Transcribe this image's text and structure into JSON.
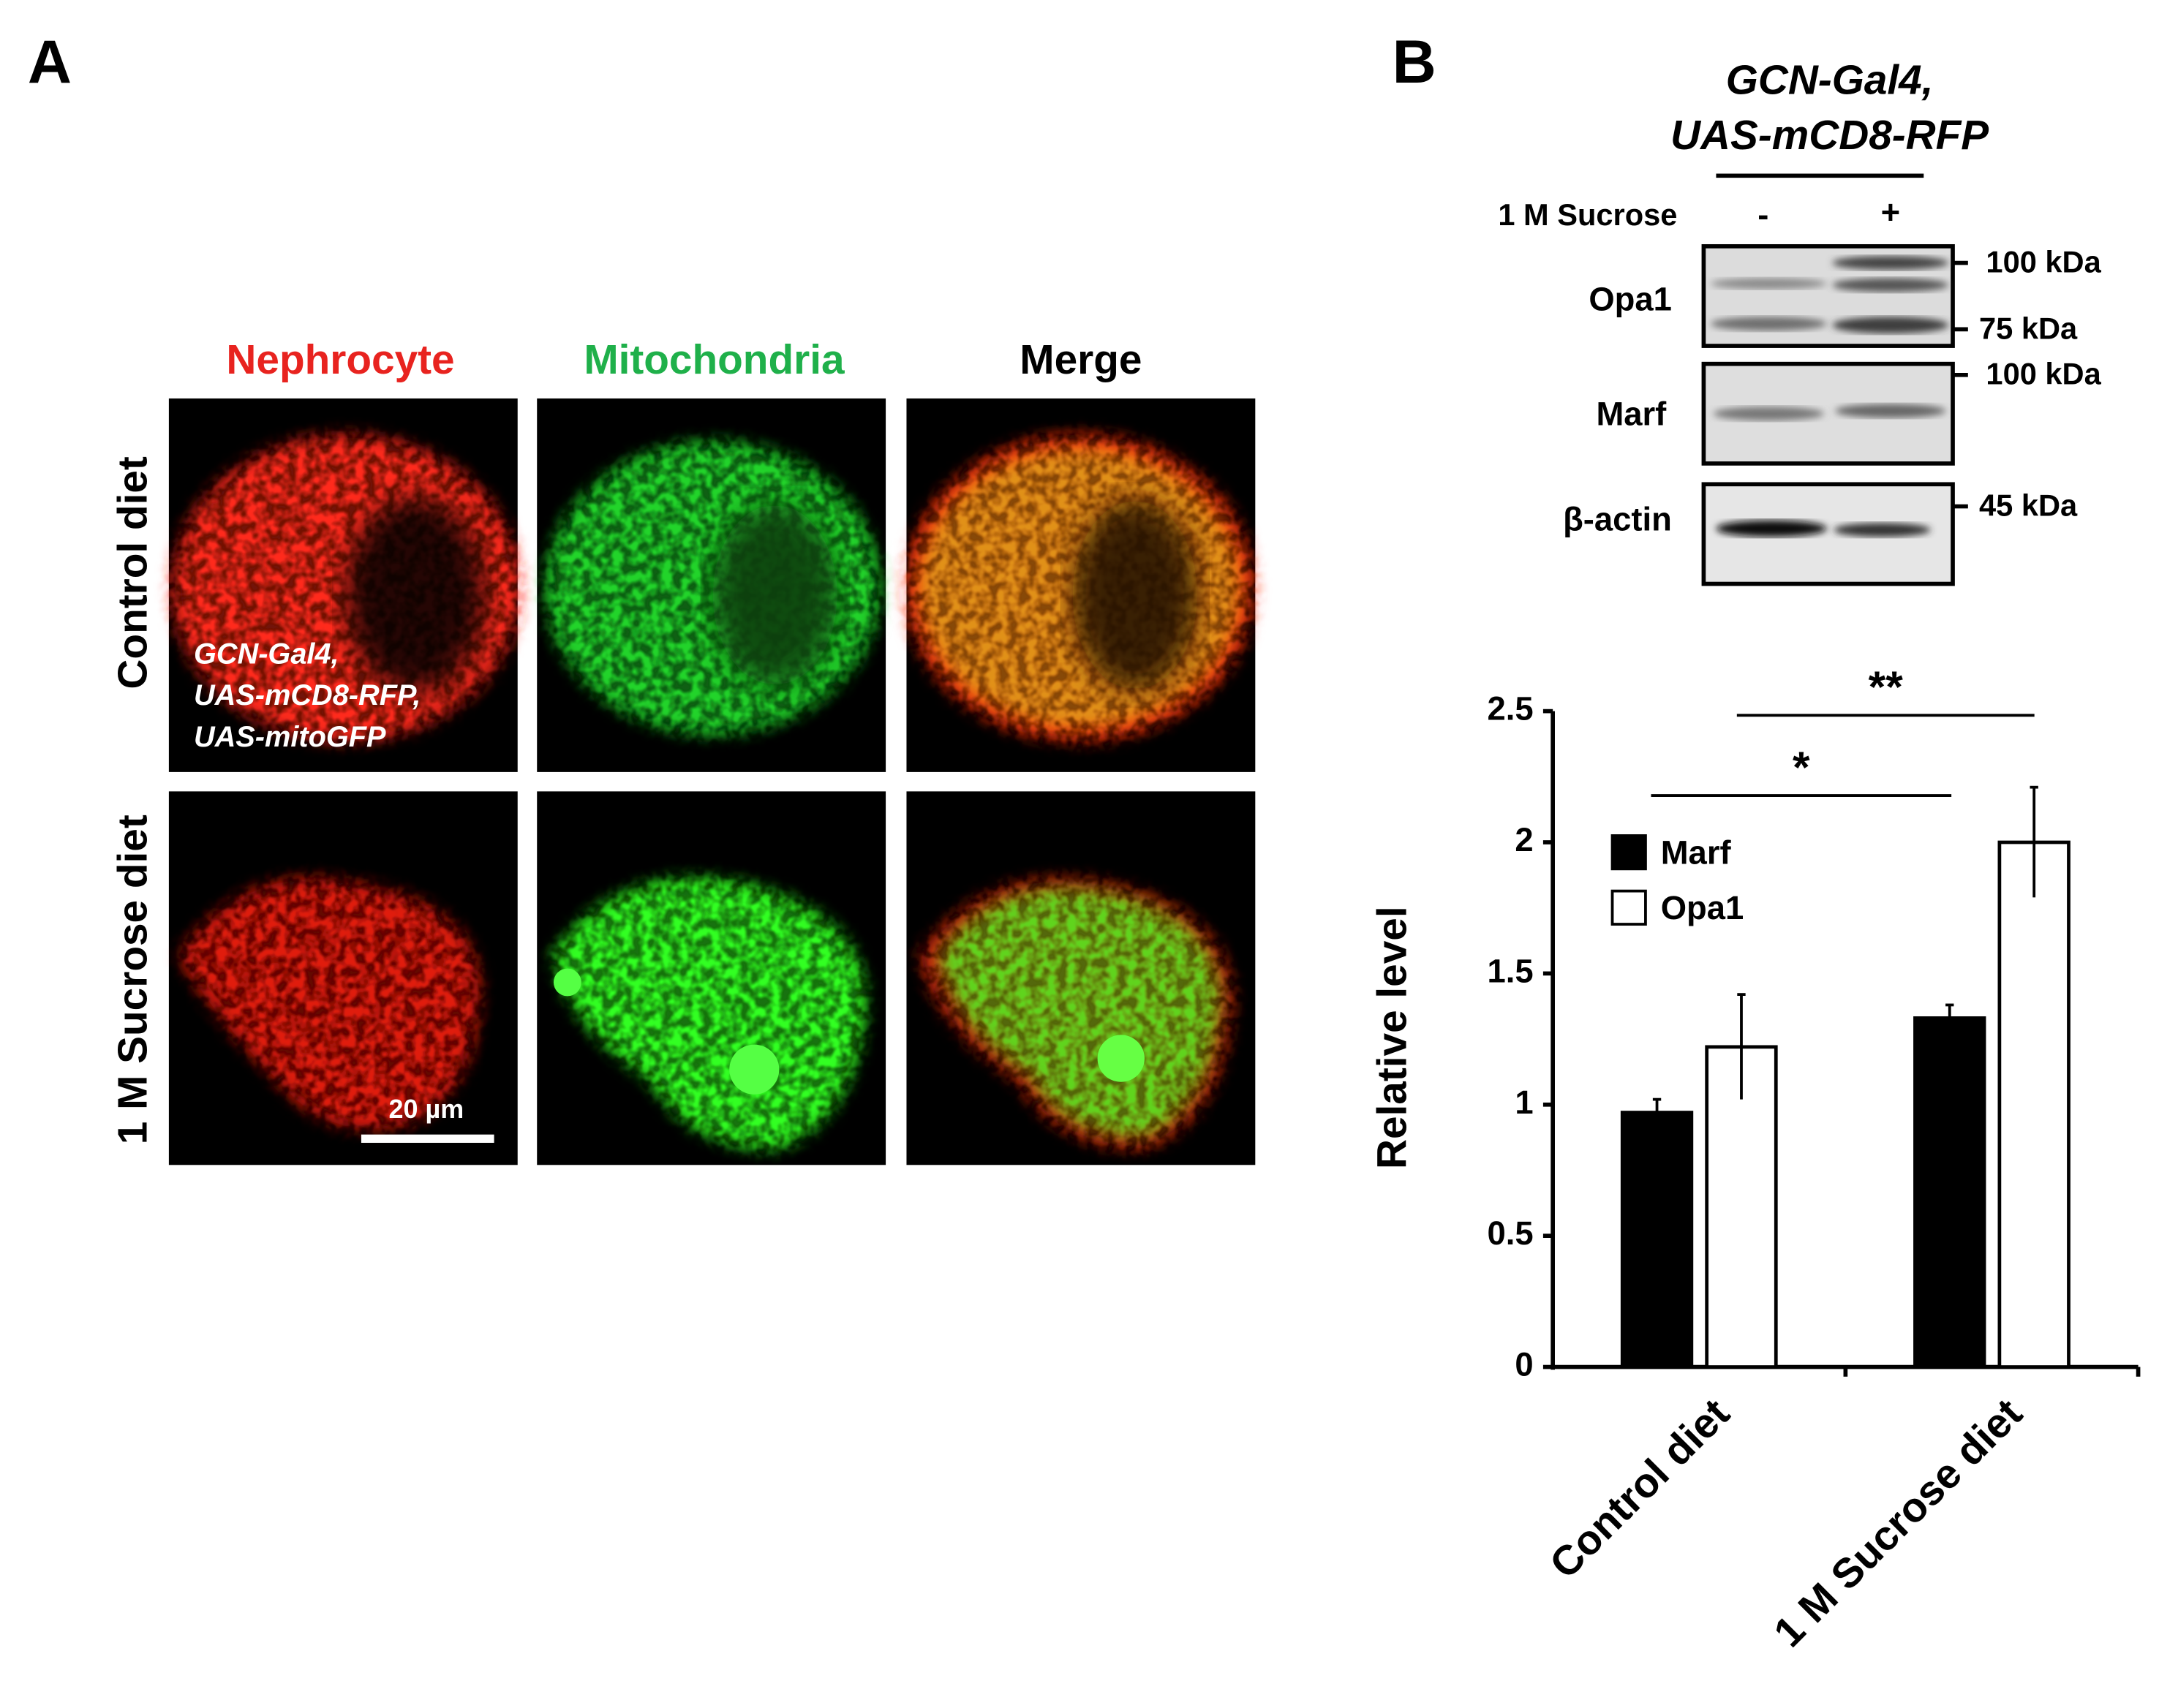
{
  "panel_a": {
    "label": "A",
    "columns": [
      "Nephrocyte",
      "Mitochondria",
      "Merge"
    ],
    "rows": [
      "Control diet",
      "1 M Sucrose diet"
    ],
    "genotype": [
      "GCN-Gal4,",
      "UAS-mCD8-RFP,",
      "UAS-mitoGFP"
    ],
    "scale_bar": "20 µm"
  },
  "panel_b": {
    "label": "B",
    "genotype": [
      "GCN-Gal4,",
      "UAS-mCD8-RFP"
    ],
    "treatment": "1 M Sucrose",
    "lanes": [
      "-",
      "+"
    ],
    "blots": [
      "Opa1",
      "Marf",
      "β-actin"
    ],
    "markers": [
      "100 kDa",
      "75 kDa",
      "100 kDa",
      "45 kDa"
    ]
  },
  "chart_data": {
    "type": "bar",
    "categories": [
      "Control diet",
      "1 M Sucrose diet"
    ],
    "series": [
      {
        "name": "Marf",
        "color": "#000000",
        "values": [
          0.97,
          1.33
        ],
        "errors": [
          0.05,
          0.05
        ]
      },
      {
        "name": "Opa1",
        "color": "#ffffff",
        "values": [
          1.22,
          2.0
        ],
        "errors": [
          0.2,
          0.21
        ]
      }
    ],
    "y_label": "Relative level",
    "ylim": [
      0,
      2.5
    ],
    "yticks": [
      0,
      0.5,
      1,
      1.5,
      2,
      2.5
    ],
    "annotations": [
      "*",
      "**"
    ]
  }
}
